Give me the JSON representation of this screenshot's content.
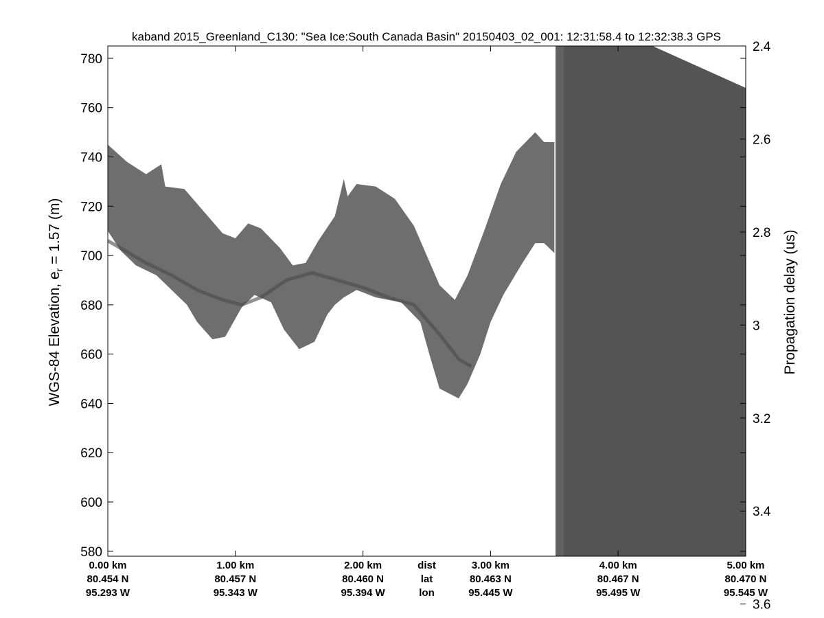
{
  "chart_data": {
    "type": "heatmap",
    "title": "kaband 2015_Greenland_C130: \"Sea Ice:South Canada Basin\"  20150403_02_001: 12:31:58.4 to 12:32:38.3 GPS",
    "ylabel_left_main": "WGS-84 Elevation, e",
    "ylabel_left_sub": "r",
    "ylabel_left_tail": " = 1.57 (m)",
    "ylabel_right": "Propagation delay (us)",
    "ylim_left": [
      578,
      785
    ],
    "yticks_left": [
      580,
      600,
      620,
      640,
      660,
      680,
      700,
      720,
      740,
      760,
      780
    ],
    "yticks_left_labels": [
      "580",
      "600",
      "620",
      "640",
      "660",
      "680",
      "700",
      "720",
      "740",
      "760",
      "780"
    ],
    "yticks_right": [
      2.4,
      2.6,
      2.8,
      3.0,
      3.2,
      3.4,
      3.6
    ],
    "yticks_right_labels": [
      "2.4",
      "2.6",
      "2.8",
      "3",
      "3.2",
      "3.4",
      "3.6"
    ],
    "right_axis_delay_at_top": 2.4,
    "right_axis_delay_per_100m": 0.53,
    "xlim_km": [
      0,
      5.0
    ],
    "xticks_km": [
      0,
      1,
      2,
      3,
      4,
      5
    ],
    "x_info_rows": [
      [
        "0.00 km",
        "1.00 km",
        "2.00 km",
        "3.00 km",
        "4.00 km",
        "5.00 km"
      ],
      [
        "80.454 N",
        "80.457 N",
        "80.460 N",
        "80.463 N",
        "80.467 N",
        "80.470 N"
      ],
      [
        "95.293 W",
        "95.343 W",
        "95.394 W",
        "95.445 W",
        "95.495 W",
        "95.545 W"
      ]
    ],
    "x_info_row_labels": [
      "dist",
      "lat",
      "lon"
    ],
    "x_info_row_labels_position_km": 2.5,
    "echo_band": {
      "color": "#6e6e6e",
      "dark_line_color": "#4a4a4a",
      "top": [
        [
          0.0,
          745
        ],
        [
          0.15,
          738
        ],
        [
          0.3,
          733
        ],
        [
          0.42,
          737
        ],
        [
          0.45,
          728
        ],
        [
          0.6,
          727
        ],
        [
          0.75,
          718
        ],
        [
          0.9,
          709
        ],
        [
          1.0,
          707
        ],
        [
          1.1,
          713
        ],
        [
          1.2,
          711
        ],
        [
          1.35,
          703
        ],
        [
          1.45,
          696
        ],
        [
          1.55,
          697
        ],
        [
          1.65,
          706
        ],
        [
          1.78,
          716
        ],
        [
          1.85,
          731
        ],
        [
          1.88,
          724
        ],
        [
          1.95,
          729
        ],
        [
          2.1,
          728
        ],
        [
          2.25,
          723
        ],
        [
          2.4,
          712
        ],
        [
          2.5,
          700
        ],
        [
          2.6,
          688
        ],
        [
          2.72,
          682
        ],
        [
          2.82,
          692
        ],
        [
          2.95,
          710
        ],
        [
          3.08,
          729
        ],
        [
          3.2,
          742
        ],
        [
          3.35,
          750
        ],
        [
          3.42,
          746
        ],
        [
          3.5,
          746
        ]
      ],
      "bottom": [
        [
          3.5,
          701
        ],
        [
          3.42,
          705
        ],
        [
          3.35,
          705
        ],
        [
          3.25,
          697
        ],
        [
          3.1,
          684
        ],
        [
          3.0,
          673
        ],
        [
          2.92,
          660
        ],
        [
          2.82,
          648
        ],
        [
          2.75,
          642
        ],
        [
          2.6,
          646
        ],
        [
          2.52,
          660
        ],
        [
          2.45,
          673
        ],
        [
          2.3,
          681
        ],
        [
          2.1,
          683
        ],
        [
          1.95,
          686
        ],
        [
          1.85,
          683
        ],
        [
          1.78,
          680
        ],
        [
          1.72,
          676
        ],
        [
          1.62,
          665
        ],
        [
          1.5,
          662
        ],
        [
          1.38,
          670
        ],
        [
          1.28,
          681
        ],
        [
          1.15,
          684
        ],
        [
          1.05,
          679
        ],
        [
          0.92,
          667
        ],
        [
          0.82,
          666
        ],
        [
          0.7,
          673
        ],
        [
          0.62,
          680
        ],
        [
          0.5,
          686
        ],
        [
          0.38,
          692
        ],
        [
          0.22,
          696
        ],
        [
          0.1,
          702
        ],
        [
          0.0,
          710
        ]
      ],
      "dark_line": [
        [
          0.0,
          706
        ],
        [
          0.3,
          697
        ],
        [
          0.5,
          692
        ],
        [
          0.7,
          686
        ],
        [
          0.9,
          682
        ],
        [
          1.05,
          680
        ],
        [
          1.2,
          683
        ],
        [
          1.4,
          690
        ],
        [
          1.6,
          693
        ],
        [
          1.8,
          690
        ],
        [
          2.0,
          687
        ],
        [
          2.2,
          683
        ],
        [
          2.4,
          680
        ],
        [
          2.6,
          668
        ],
        [
          2.75,
          658
        ],
        [
          2.85,
          655
        ]
      ]
    },
    "dark_region": {
      "x_start_km": 3.51,
      "color": "#545454",
      "edge_color": "#626262",
      "top_right_elevation": 768,
      "top_left_elevation": 785,
      "top_left_x_km": 4.27
    }
  }
}
